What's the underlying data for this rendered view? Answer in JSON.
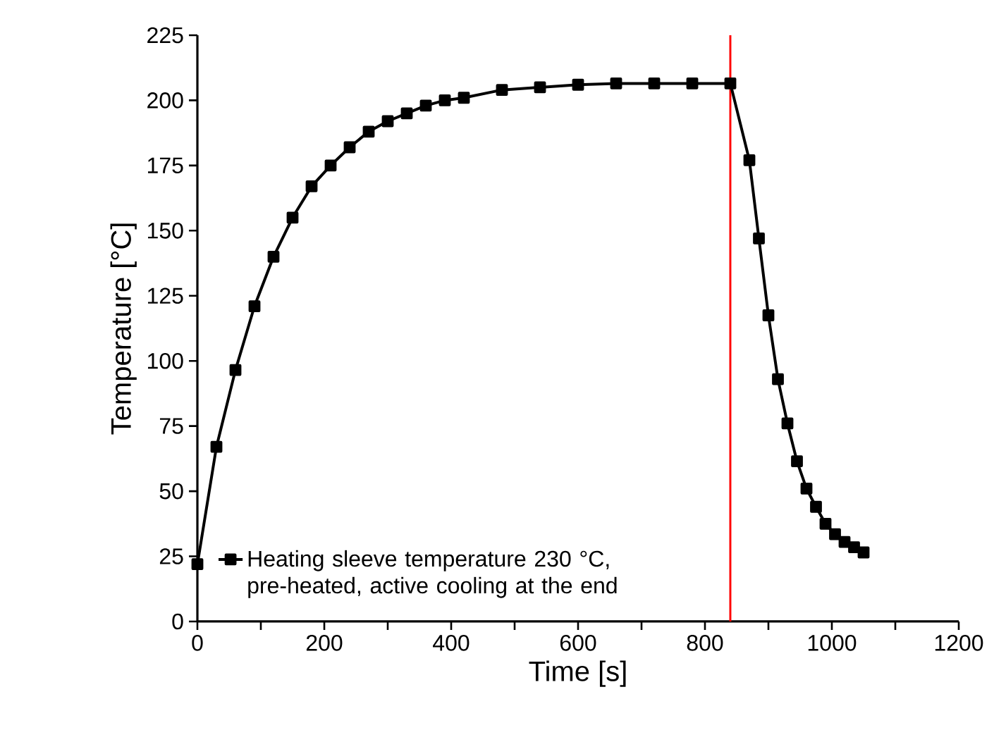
{
  "chart_data": {
    "type": "line",
    "xlabel": "Time [s]",
    "ylabel": "Temperature [°C]",
    "x": [
      0,
      30,
      60,
      90,
      120,
      150,
      180,
      210,
      240,
      270,
      300,
      330,
      360,
      390,
      420,
      480,
      540,
      600,
      660,
      720,
      780,
      840,
      870,
      885,
      900,
      915,
      930,
      945,
      960,
      975,
      990,
      1005,
      1020,
      1035,
      1050
    ],
    "series": [
      {
        "name": "Heating sleeve temperature 230 °C, pre-heated, active cooling at the end",
        "color": "#000000",
        "values": [
          22,
          67,
          96.5,
          121,
          140,
          155,
          167,
          175,
          182,
          188,
          192,
          195,
          198,
          200,
          201,
          204,
          205,
          206,
          206.5,
          206.5,
          206.5,
          206.5,
          177,
          147,
          117.5,
          93,
          76,
          61.5,
          51,
          44,
          37.5,
          33.5,
          30.5,
          28.5,
          26.5
        ]
      }
    ],
    "xlim": [
      0,
      1200
    ],
    "ylim": [
      0,
      225
    ],
    "xticks": [
      0,
      {
        "value": 100,
        "label": null
      },
      200,
      {
        "value": 300,
        "label": null
      },
      400,
      {
        "value": 500,
        "label": null
      },
      600,
      {
        "value": 700,
        "label": null
      },
      800,
      {
        "value": 900,
        "label": null
      },
      1000,
      {
        "value": 1100,
        "label": null
      },
      1200
    ],
    "yticks": [
      0,
      25,
      50,
      75,
      100,
      125,
      150,
      175,
      200,
      225
    ],
    "marker": "square",
    "line_style": "solid",
    "legend": "bottom left",
    "grid": false,
    "ref_lines": [
      {
        "axis": "x",
        "value": 840,
        "color": "#ff0000"
      }
    ]
  }
}
